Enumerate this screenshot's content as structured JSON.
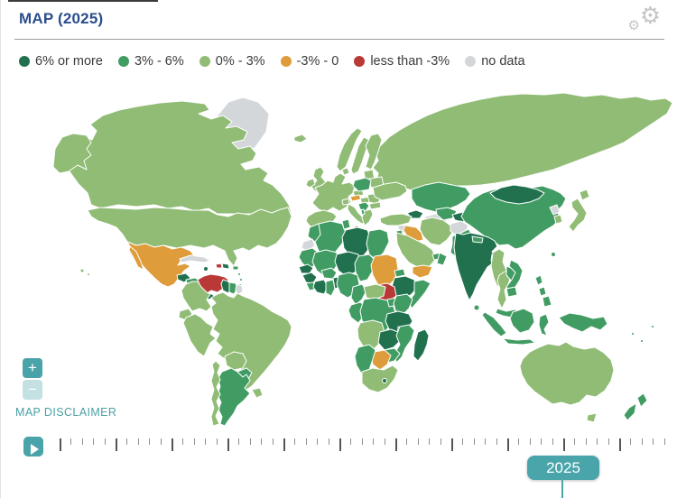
{
  "header": {
    "title": "MAP (2025)"
  },
  "icons": {
    "settings": "⚙",
    "play": "play-icon",
    "zoom_in": "+",
    "zoom_out": "−"
  },
  "legend": {
    "items": [
      {
        "key": "g6",
        "label": "6% or more",
        "color": "#21714f"
      },
      {
        "key": "g3",
        "label": "3% - 6%",
        "color": "#419c63"
      },
      {
        "key": "g0",
        "label": "0% - 3%",
        "color": "#90bc75"
      },
      {
        "key": "o",
        "label": "-3% - 0",
        "color": "#df9c3b"
      },
      {
        "key": "r",
        "label": "less than -3%",
        "color": "#b93936"
      },
      {
        "key": "nd",
        "label": "no data",
        "color": "#d4d7da"
      }
    ]
  },
  "map": {
    "disclaimer": "MAP DISCLAIMER",
    "regions": {
      "greenland": "nd",
      "canada": "g0",
      "alaska": "g0",
      "usa": "g0",
      "hawaii": "g0",
      "mexico": "o",
      "guatemala": "g6",
      "honduras": "g3",
      "nicaragua": "g6",
      "costa-rica": "g3",
      "panama": "g6",
      "cuba": "nd",
      "jamaica": "g6",
      "haiti": "r",
      "dominican-republic": "g6",
      "puerto-rico": "g3",
      "lesser-antilles": "g3",
      "trinidad": "g6",
      "venezuela": "r",
      "colombia": "g0",
      "guyana": "g6",
      "suriname": "g3",
      "french-guiana": "nd",
      "ecuador": "g0",
      "peru": "g0",
      "brazil": "g0",
      "bolivia": "g0",
      "paraguay": "g3",
      "uruguay": "g0",
      "argentina": "g3",
      "chile": "g0",
      "iceland": "g0",
      "uk": "g0",
      "ireland": "g0",
      "norway": "g0",
      "sweden": "g0",
      "finland": "g0",
      "denmark": "g0",
      "baltics": "g0",
      "belarus": "g0",
      "europe-mainland": "g0",
      "spain": "g0",
      "italy": "g0",
      "switzerland": "g0",
      "czechia": "g0",
      "poland": "g3",
      "austria": "o",
      "hungary": "g0",
      "croatia-serbia": "g3",
      "albania": "g3",
      "romania": "g0",
      "bulgaria": "g0",
      "greece": "g0",
      "ukraine": "g0",
      "russia": "g0",
      "kazakhstan": "g3",
      "turkmenistan": "nd",
      "uzbekistan": "g3",
      "kyrgyzstan-tajikistan": "g6",
      "caucasus": "g6",
      "turkey": "g0",
      "syria": "nd",
      "levant": "g3",
      "iraq": "o",
      "iran": "g0",
      "afghanistan": "nd",
      "pakistan": "g3",
      "saudi-arabia": "g0",
      "gulf-states": "g3",
      "oman": "g3",
      "yemen": "o",
      "india": "g6",
      "nepal": "g3",
      "bangladesh": "g6",
      "sri-lanka": "g3",
      "china": "g3",
      "mongolia": "g6",
      "north-korea": "nd",
      "south-korea": "g0",
      "japan": "g0",
      "taiwan": "g3",
      "myanmar": "g0",
      "thailand": "g0",
      "laos": "g3",
      "vietnam": "g3",
      "cambodia": "g3",
      "malaysia": "g3",
      "philippines": "g3",
      "sumatra": "g3",
      "java": "g3",
      "borneo": "g3",
      "sulawesi": "g3",
      "new-guinea": "g3",
      "australia": "g0",
      "tasmania": "g0",
      "new-zealand": "g3",
      "pacific-islands": "g3",
      "morocco": "g3",
      "western-sahara": "nd",
      "algeria": "g3",
      "tunisia": "g3",
      "libya": "g6",
      "egypt": "g3",
      "mauritania": "g3",
      "mali": "g3",
      "niger": "g6",
      "chad": "g3",
      "sudan": "o",
      "eritrea": "g3",
      "ethiopia": "g6",
      "somalia": "g3",
      "south-sudan": "r",
      "senegal": "g6",
      "guinea": "g6",
      "sierra-leone-liberia": "g3",
      "ivory-coast": "g6",
      "burkina-faso": "g3",
      "ghana": "g3",
      "togo-benin": "g6",
      "nigeria": "g3",
      "cameroon": "g3",
      "central-african-republic": "g0",
      "gabon-congo": "g3",
      "drc": "g3",
      "uganda": "g3",
      "kenya": "g3",
      "tanzania": "g6",
      "angola": "g0",
      "zambia": "g6",
      "malawi": "g6",
      "mozambique": "g3",
      "zimbabwe": "g3",
      "botswana": "o",
      "namibia": "g3",
      "south-africa": "g0",
      "lesotho": "g6",
      "madagascar": "g6"
    }
  },
  "timeline": {
    "year_label": "2025",
    "tick_count": 55,
    "major_every": 5
  },
  "controls": {
    "zoom_in_label": "+",
    "zoom_out_label": "−"
  }
}
